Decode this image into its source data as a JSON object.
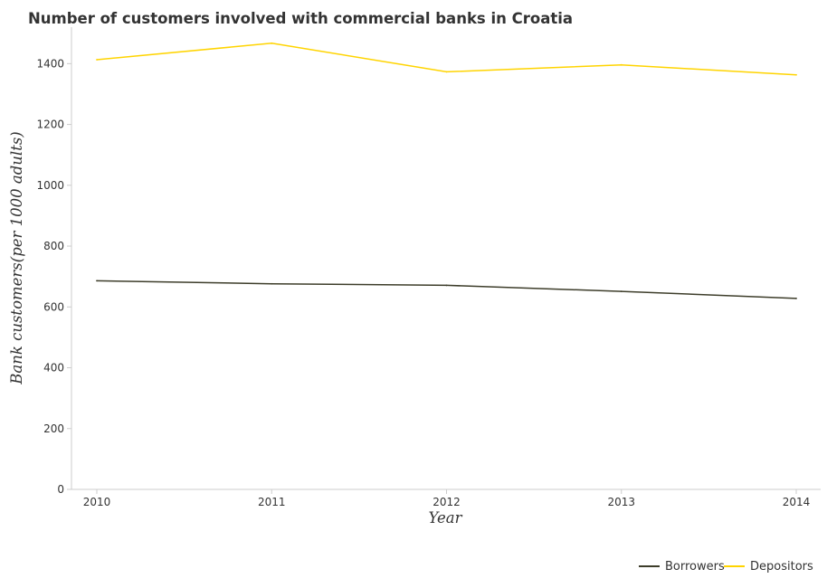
{
  "chart_data": {
    "type": "line",
    "title": "Number of customers involved with commercial banks in Croatia",
    "xlabel": "Year",
    "ylabel": "Bank customers(per 1000 adults)",
    "categories": [
      "2010",
      "2011",
      "2012",
      "2013",
      "2014"
    ],
    "ylim": [
      0,
      1520
    ],
    "yticks": [
      0,
      200,
      400,
      600,
      800,
      1000,
      1200,
      1400
    ],
    "series": [
      {
        "name": "Borrowers",
        "color": "#3d3d2a",
        "values": [
          686,
          676,
          671,
          651,
          628
        ]
      },
      {
        "name": "Depositors",
        "color": "#ffd400",
        "values": [
          1413,
          1467,
          1373,
          1396,
          1363
        ]
      }
    ],
    "legend": "bottom-right",
    "grid": false
  }
}
